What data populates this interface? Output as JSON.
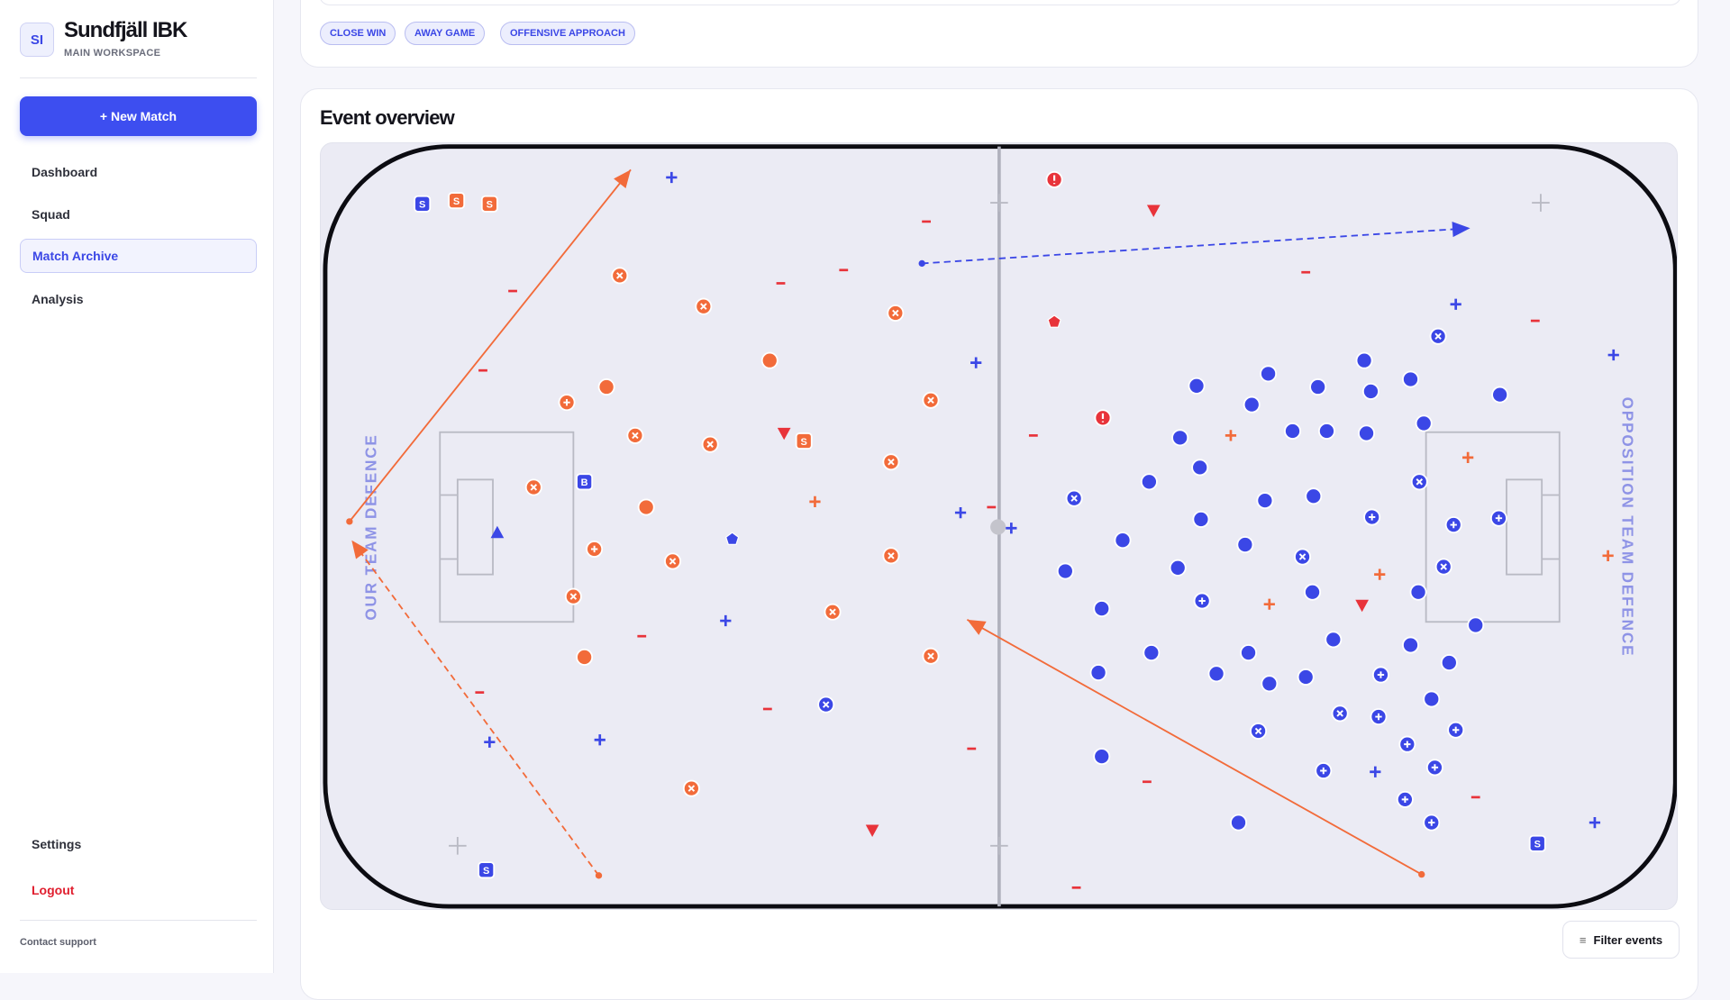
{
  "sidebar": {
    "logo": "SI",
    "team": "Sundfjäll IBK",
    "workspace": "MAIN WORKSPACE",
    "new_match": "+ New Match",
    "nav": [
      "Dashboard",
      "Squad",
      "Match Archive",
      "Analysis"
    ],
    "settings": "Settings",
    "logout": "Logout",
    "support": "Contact support"
  },
  "tags": [
    "CLOSE WIN",
    "AWAY GAME",
    "OFFENSIVE APPROACH"
  ],
  "overview": {
    "title": "Event overview",
    "left_label": "OUR TEAM DEFENCE",
    "right_label": "OPPOSITION TEAM DEFENCE",
    "badges": [
      "S",
      "S",
      "S",
      "S",
      "B",
      "S",
      "S"
    ],
    "filter": "Filter events"
  }
}
